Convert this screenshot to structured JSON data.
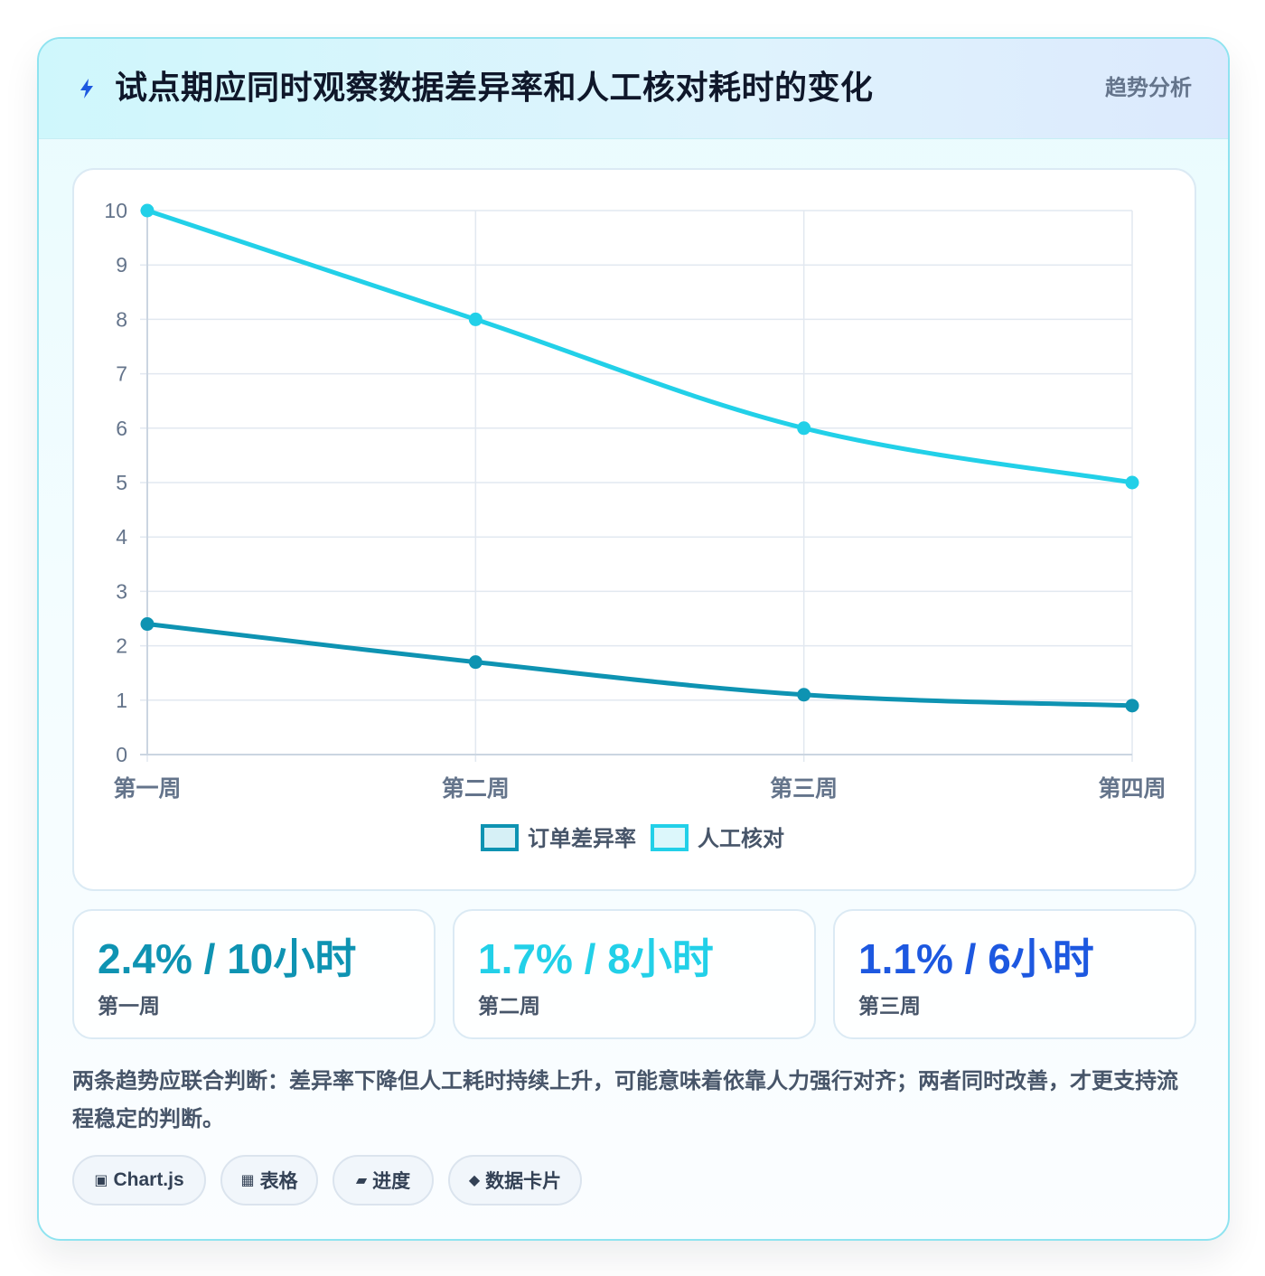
{
  "header": {
    "icon": "lightning-icon",
    "title": "试点期应同时观察数据差异率和人工核对耗时的变化",
    "tag": "趋势分析"
  },
  "chart_data": {
    "type": "line",
    "categories": [
      "第一周",
      "第二周",
      "第三周",
      "第四周"
    ],
    "series": [
      {
        "name": "订单差异率",
        "values": [
          2.4,
          1.7,
          1.1,
          0.9
        ],
        "color": "#0e93b2"
      },
      {
        "name": "人工核对",
        "values": [
          10,
          8,
          6,
          5
        ],
        "color": "#22d0e8"
      }
    ],
    "ylim": [
      0,
      10
    ],
    "yticks": [
      "0",
      "1",
      "2",
      "3",
      "4",
      "5",
      "6",
      "7",
      "8",
      "9",
      "10"
    ],
    "grid": true,
    "legend": "bottom"
  },
  "stats": [
    {
      "value": "2.4% / 10小时",
      "label": "第一周",
      "color": "#0e93b2"
    },
    {
      "value": "1.7% / 8小时",
      "label": "第二周",
      "color": "#22d0e8"
    },
    {
      "value": "1.1% / 6小时",
      "label": "第三周",
      "color": "#1d58e0"
    }
  ],
  "note": "两条趋势应联合判断：差异率下降但人工耗时持续上升，可能意味着依靠人力强行对齐；两者同时改善，才更支持流程稳定的判断。",
  "tags": [
    {
      "icon": "▣",
      "label": "Chart.js"
    },
    {
      "icon": "▦",
      "label": "表格"
    },
    {
      "icon": "▰",
      "label": "进度"
    },
    {
      "icon": "◆",
      "label": "数据卡片"
    }
  ]
}
